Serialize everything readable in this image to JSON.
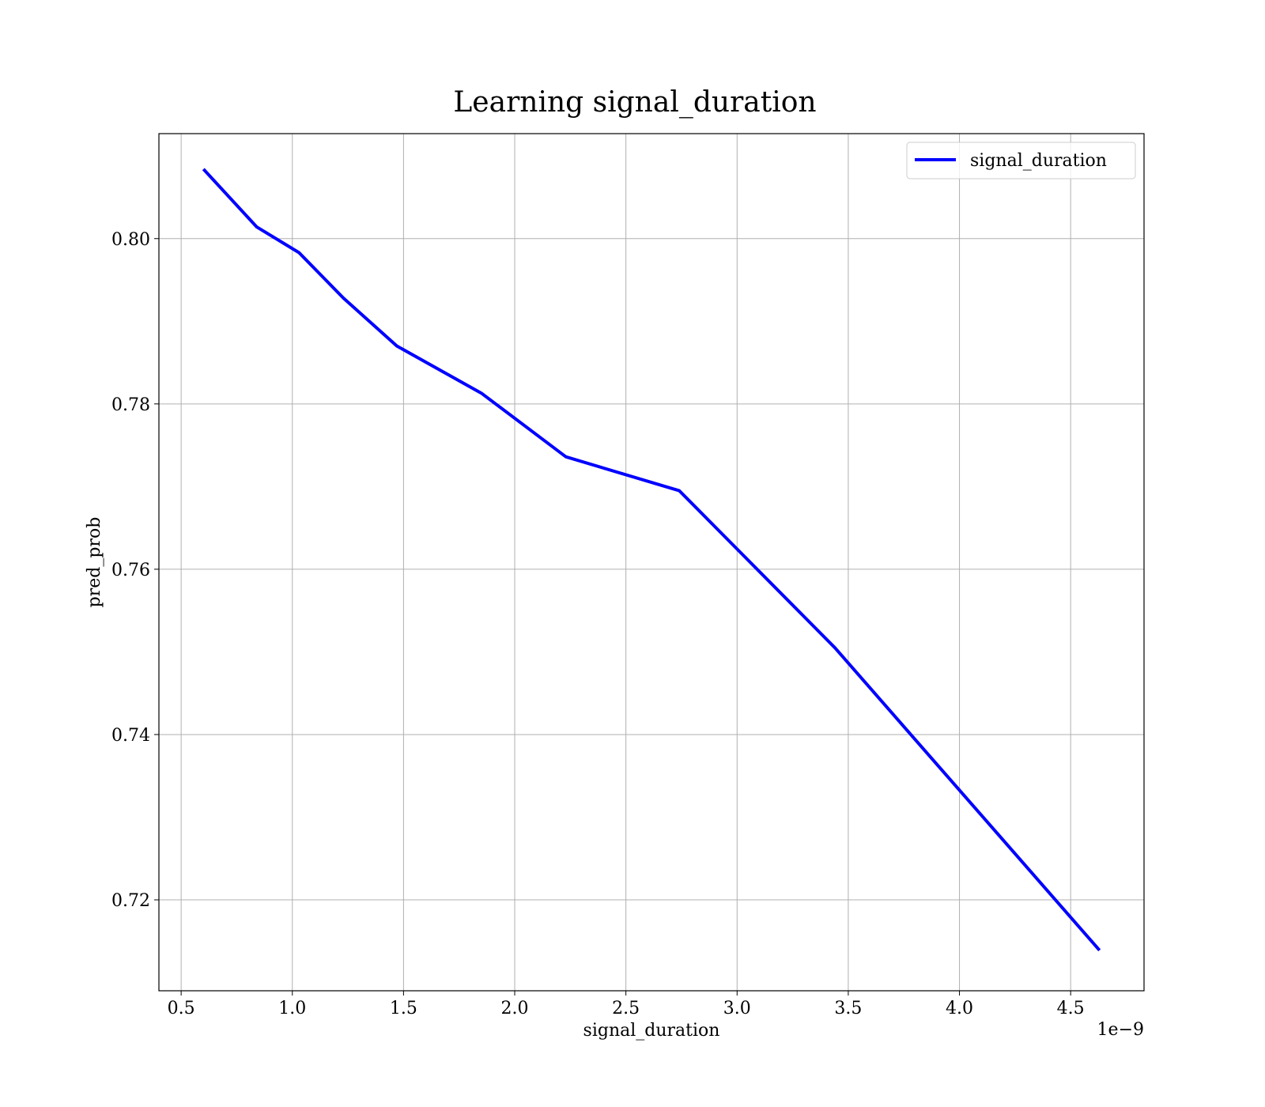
{
  "chart_data": {
    "type": "line",
    "title": "Learning signal_duration",
    "xlabel": "signal_duration",
    "ylabel": "pred_prob",
    "x_offset_label": "1e−9",
    "x_scale": 1e-09,
    "xlim": [
      0.4,
      4.83
    ],
    "ylim": [
      0.709,
      0.8127
    ],
    "x_ticks": [
      0.5,
      1.0,
      1.5,
      2.0,
      2.5,
      3.0,
      3.5,
      4.0,
      4.5
    ],
    "x_tick_labels": [
      "0.5",
      "1.0",
      "1.5",
      "2.0",
      "2.5",
      "3.0",
      "3.5",
      "4.0",
      "4.5"
    ],
    "y_ticks": [
      0.72,
      0.74,
      0.76,
      0.78,
      0.8
    ],
    "y_tick_labels": [
      "0.72",
      "0.74",
      "0.76",
      "0.78",
      "0.80"
    ],
    "grid": true,
    "legend_position": "top-right",
    "series": [
      {
        "name": "signal_duration",
        "color": "#0000ff",
        "x": [
          0.6,
          0.84,
          1.03,
          1.23,
          1.47,
          1.85,
          2.23,
          2.74,
          3.44,
          4.63
        ],
        "y": [
          0.8084,
          0.8014,
          0.7983,
          0.7928,
          0.787,
          0.7813,
          0.7736,
          0.7695,
          0.7505,
          0.7139
        ]
      }
    ]
  }
}
